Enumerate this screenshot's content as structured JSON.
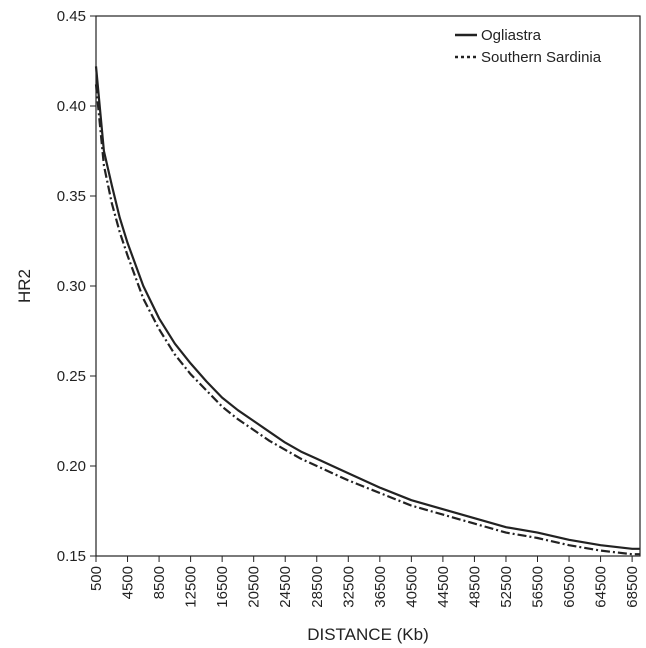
{
  "chart_data": {
    "type": "line",
    "xlabel": "DISTANCE (Kb)",
    "ylabel": "HR2",
    "xlim": [
      500,
      69500
    ],
    "ylim": [
      0.15,
      0.45
    ],
    "yticks": [
      "0.15",
      "0.20",
      "0.25",
      "0.30",
      "0.35",
      "0.40",
      "0.45"
    ],
    "xticks": [
      "500",
      "4500",
      "8500",
      "12500",
      "16500",
      "20500",
      "24500",
      "28500",
      "32500",
      "36500",
      "40500",
      "44500",
      "48500",
      "52500",
      "56500",
      "60500",
      "64500",
      "68500"
    ],
    "legend_position": "top-right",
    "grid": false,
    "series": [
      {
        "name": "Ogliastra",
        "style": "solid",
        "color": "#222222",
        "x": [
          500,
          1500,
          2500,
          3500,
          4500,
          6500,
          8500,
          10500,
          12500,
          14500,
          16500,
          18500,
          20500,
          22500,
          24500,
          26500,
          28500,
          30500,
          32500,
          36500,
          40500,
          44500,
          48500,
          52500,
          56500,
          60500,
          64500,
          68500,
          69500
        ],
        "values": [
          0.422,
          0.375,
          0.356,
          0.338,
          0.324,
          0.3,
          0.282,
          0.268,
          0.257,
          0.247,
          0.238,
          0.231,
          0.225,
          0.219,
          0.213,
          0.208,
          0.204,
          0.2,
          0.196,
          0.188,
          0.181,
          0.176,
          0.171,
          0.166,
          0.163,
          0.159,
          0.156,
          0.154,
          0.154
        ]
      },
      {
        "name": "Southern Sardinia",
        "style": "dash-dot",
        "color": "#222222",
        "x": [
          500,
          1500,
          2500,
          3500,
          4500,
          6500,
          8500,
          10500,
          12500,
          14500,
          16500,
          18500,
          20500,
          22500,
          24500,
          26500,
          28500,
          30500,
          32500,
          36500,
          40500,
          44500,
          48500,
          52500,
          56500,
          60500,
          64500,
          68500,
          69500
        ],
        "values": [
          0.412,
          0.367,
          0.346,
          0.33,
          0.317,
          0.293,
          0.276,
          0.262,
          0.251,
          0.242,
          0.233,
          0.226,
          0.22,
          0.214,
          0.209,
          0.204,
          0.2,
          0.196,
          0.192,
          0.185,
          0.178,
          0.173,
          0.168,
          0.163,
          0.16,
          0.156,
          0.153,
          0.151,
          0.151
        ]
      }
    ]
  }
}
